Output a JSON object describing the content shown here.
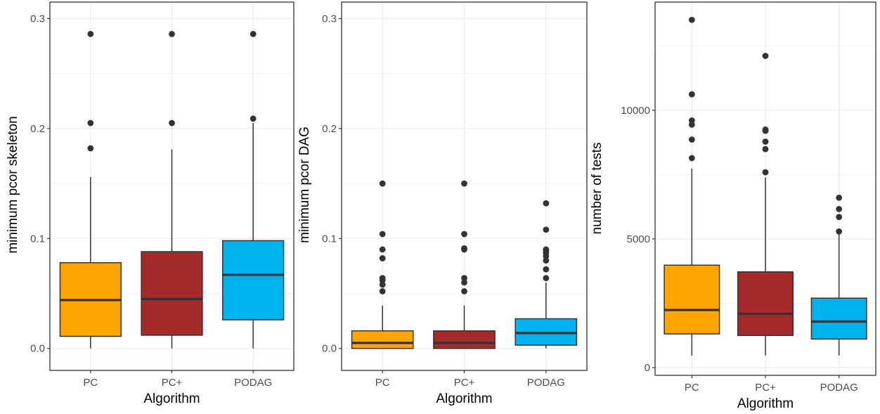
{
  "chart_data": [
    {
      "type": "box",
      "xlabel": "Algorithm",
      "ylabel": "minimum pcor skeleton",
      "ylim": [
        -0.02,
        0.315
      ],
      "yticks": [
        0.0,
        0.1,
        0.2,
        0.3
      ],
      "ytick_labels": [
        "0.0",
        "0.1",
        "0.2",
        "0.3"
      ],
      "grid": true,
      "categories": [
        "PC",
        "PC+",
        "PODAG"
      ],
      "colors": [
        "#FFA500",
        "#A52A2A",
        "#00B2EE"
      ],
      "boxes": [
        {
          "name": "PC",
          "min": 0.0,
          "q1": 0.011,
          "median": 0.044,
          "q3": 0.078,
          "max": 0.156,
          "outliers": [
            0.182,
            0.205,
            0.286
          ]
        },
        {
          "name": "PC+",
          "min": 0.0,
          "q1": 0.012,
          "median": 0.045,
          "q3": 0.088,
          "max": 0.181,
          "outliers": [
            0.205,
            0.286
          ]
        },
        {
          "name": "PODAG",
          "min": 0.0,
          "q1": 0.026,
          "median": 0.067,
          "q3": 0.098,
          "max": 0.205,
          "outliers": [
            0.209,
            0.286
          ]
        }
      ]
    },
    {
      "type": "box",
      "xlabel": "Algorithm",
      "ylabel": "minimum pcor DAG",
      "ylim": [
        -0.02,
        0.315
      ],
      "yticks": [
        0.0,
        0.1,
        0.2,
        0.3
      ],
      "ytick_labels": [
        "0.0",
        "0.1",
        "0.2",
        "0.3"
      ],
      "grid": true,
      "categories": [
        "PC",
        "PC+",
        "PODAG"
      ],
      "colors": [
        "#FFA500",
        "#A52A2A",
        "#00B2EE"
      ],
      "boxes": [
        {
          "name": "PC",
          "min": 0.0,
          "q1": 0.0,
          "median": 0.005,
          "q3": 0.016,
          "max": 0.039,
          "outliers": [
            0.052,
            0.058,
            0.062,
            0.064,
            0.082,
            0.09,
            0.104,
            0.15
          ]
        },
        {
          "name": "PC+",
          "min": 0.0,
          "q1": 0.0,
          "median": 0.005,
          "q3": 0.016,
          "max": 0.039,
          "outliers": [
            0.052,
            0.06,
            0.064,
            0.09,
            0.091,
            0.104,
            0.15
          ]
        },
        {
          "name": "PODAG",
          "min": 0.0,
          "q1": 0.003,
          "median": 0.014,
          "q3": 0.027,
          "max": 0.06,
          "outliers": [
            0.064,
            0.072,
            0.08,
            0.084,
            0.087,
            0.089,
            0.09,
            0.108,
            0.132
          ]
        }
      ]
    },
    {
      "type": "box",
      "xlabel": "Algorithm",
      "ylabel": "number of tests",
      "ylim": [
        -300,
        14200
      ],
      "yticks": [
        0,
        5000,
        10000
      ],
      "ytick_labels": [
        "0",
        "5000",
        "10000"
      ],
      "grid": true,
      "categories": [
        "PC",
        "PC+",
        "PODAG"
      ],
      "colors": [
        "#FFA500",
        "#A52A2A",
        "#00B2EE"
      ],
      "boxes": [
        {
          "name": "PC",
          "min": 470,
          "q1": 1310,
          "median": 2240,
          "q3": 3980,
          "max": 7740,
          "outliers": [
            8140,
            8860,
            9440,
            9600,
            10620,
            13510
          ]
        },
        {
          "name": "PC+",
          "min": 470,
          "q1": 1250,
          "median": 2090,
          "q3": 3720,
          "max": 7380,
          "outliers": [
            7590,
            8490,
            8780,
            9200,
            9250,
            12110
          ]
        },
        {
          "name": "PODAG",
          "min": 470,
          "q1": 1110,
          "median": 1790,
          "q3": 2700,
          "max": 5210,
          "outliers": [
            5290,
            5850,
            6160,
            6600
          ]
        }
      ]
    }
  ]
}
